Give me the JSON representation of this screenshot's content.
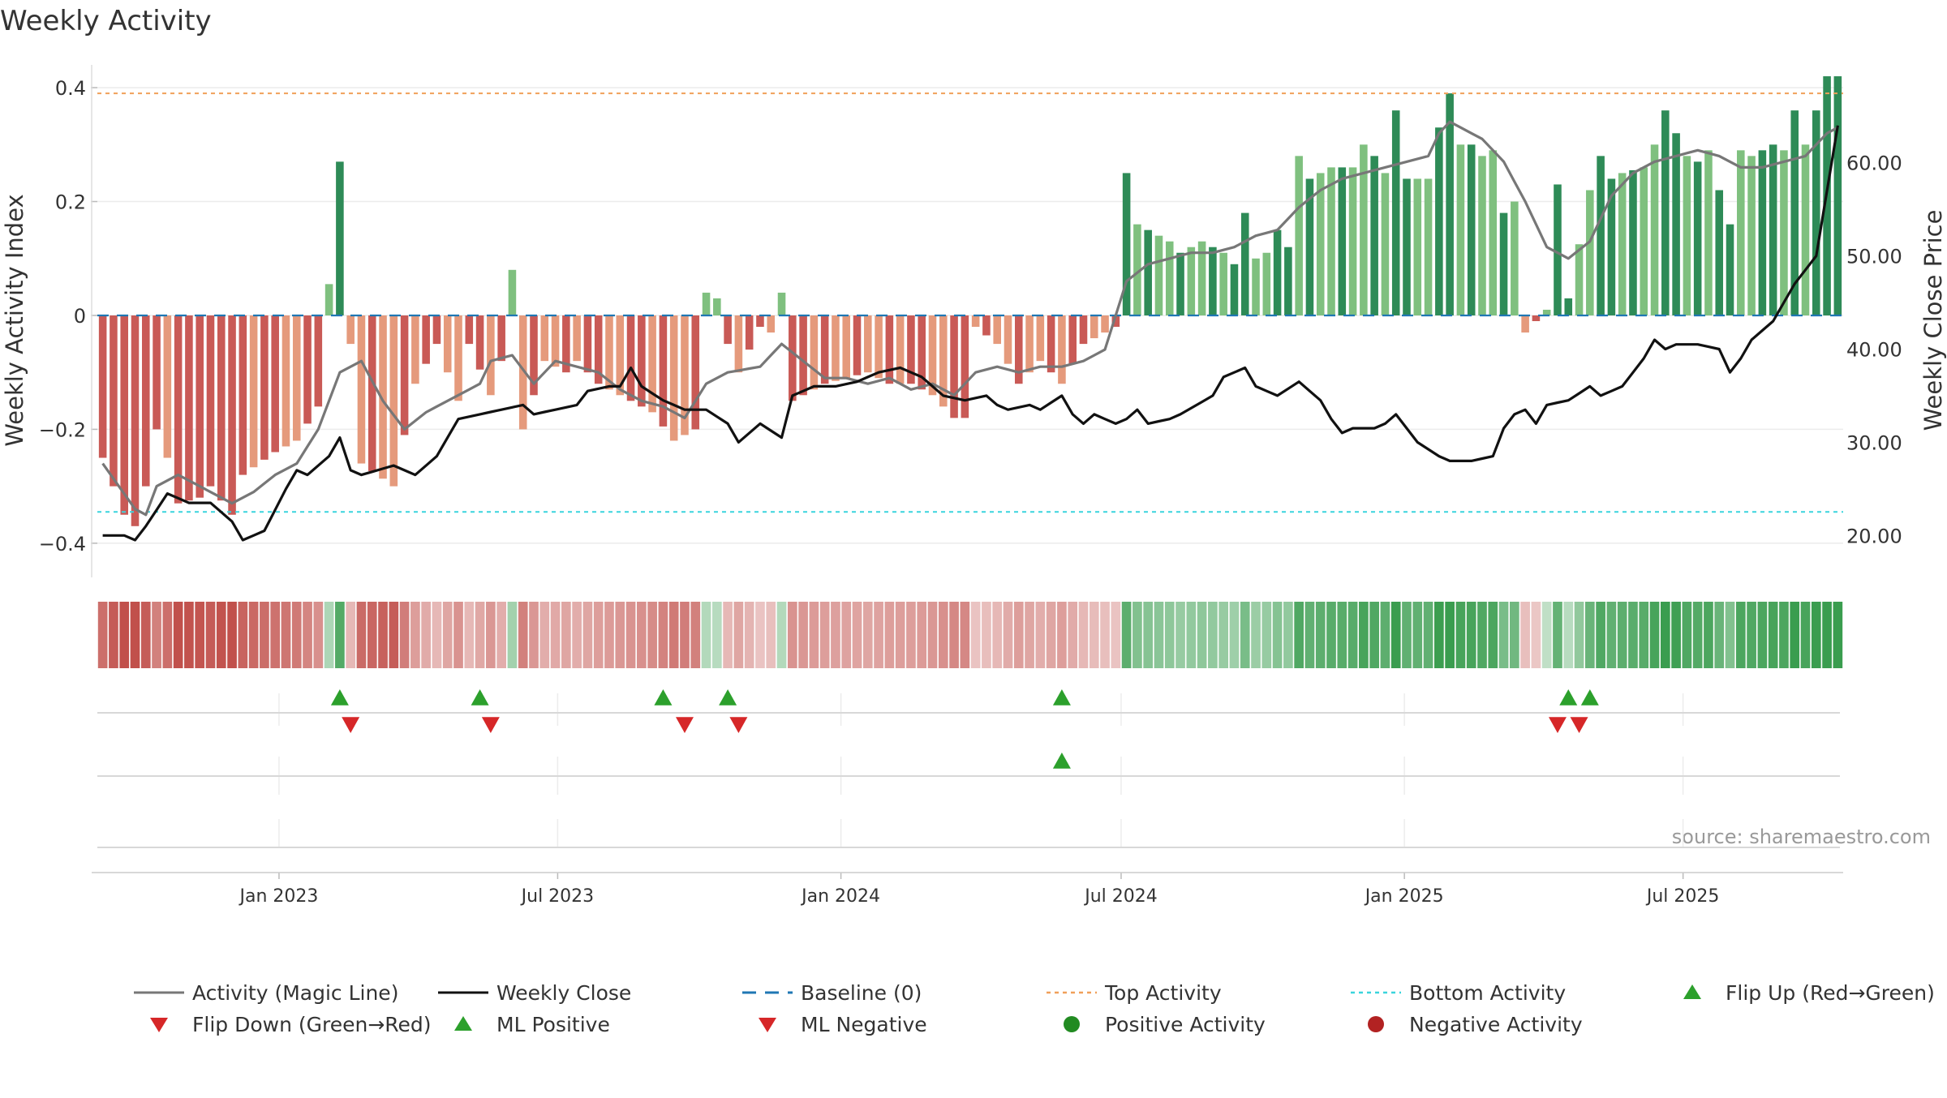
{
  "chart_data": {
    "type": "bar",
    "title": "Weekly Activity",
    "ylabel_left": "Weekly Activity Index",
    "ylabel_right": "Weekly Close Price",
    "source": "source: sharemaestro.com",
    "x_start": "2022-09-05",
    "week_count": 162,
    "x_ticks": [
      {
        "label": "Jan 2023",
        "date": "2023-01-01"
      },
      {
        "label": "Jul 2023",
        "date": "2023-07-01"
      },
      {
        "label": "Jan 2024",
        "date": "2024-01-01"
      },
      {
        "label": "Jul 2024",
        "date": "2024-07-01"
      },
      {
        "label": "Jan 2025",
        "date": "2025-01-01"
      },
      {
        "label": "Jul 2025",
        "date": "2025-07-01"
      }
    ],
    "left_axis": {
      "ylim": [
        -0.46,
        0.44
      ],
      "ticks": [
        {
          "v": 0.4,
          "label": "0.4"
        },
        {
          "v": 0.2,
          "label": "0.2"
        },
        {
          "v": 0,
          "label": "0"
        },
        {
          "v": -0.2,
          "label": "−0.2"
        },
        {
          "v": -0.4,
          "label": "−0.4"
        }
      ]
    },
    "right_axis": {
      "ylim": [
        15.5,
        70.5
      ],
      "ticks": [
        {
          "v": 60,
          "label": "60.00"
        },
        {
          "v": 50,
          "label": "50.00"
        },
        {
          "v": 40,
          "label": "40.00"
        },
        {
          "v": 30,
          "label": "30.00"
        },
        {
          "v": 20,
          "label": "20.00"
        }
      ]
    },
    "top_activity": 0.39,
    "bottom_activity": -0.345,
    "activity_keypoints": [
      [
        0,
        -0.25
      ],
      [
        2,
        -0.35
      ],
      [
        3,
        -0.37
      ],
      [
        4,
        -0.3
      ],
      [
        5,
        -0.2
      ],
      [
        6,
        -0.25
      ],
      [
        7,
        -0.33
      ],
      [
        9,
        -0.32
      ],
      [
        10,
        -0.3
      ],
      [
        12,
        -0.35
      ],
      [
        13,
        -0.28
      ],
      [
        16,
        -0.24
      ],
      [
        18,
        -0.22
      ],
      [
        20,
        -0.16
      ],
      [
        22,
        0.27
      ],
      [
        23,
        -0.05
      ],
      [
        24,
        -0.26
      ],
      [
        27,
        -0.3
      ],
      [
        29,
        -0.12
      ],
      [
        31,
        -0.05
      ],
      [
        33,
        -0.15
      ],
      [
        34,
        -0.05
      ],
      [
        36,
        -0.14
      ],
      [
        37,
        -0.08
      ],
      [
        38,
        0.08
      ],
      [
        39,
        -0.2
      ],
      [
        41,
        -0.08
      ],
      [
        43,
        -0.1
      ],
      [
        44,
        -0.08
      ],
      [
        46,
        -0.12
      ],
      [
        48,
        -0.14
      ],
      [
        51,
        -0.17
      ],
      [
        53,
        -0.22
      ],
      [
        55,
        -0.2
      ],
      [
        56,
        0.04
      ],
      [
        57,
        0.03
      ],
      [
        58,
        -0.05
      ],
      [
        59,
        -0.1
      ],
      [
        61,
        -0.02
      ],
      [
        62,
        -0.03
      ],
      [
        63,
        0.04
      ],
      [
        64,
        -0.15
      ],
      [
        67,
        -0.12
      ],
      [
        69,
        -0.11
      ],
      [
        71,
        -0.1
      ],
      [
        73,
        -0.12
      ],
      [
        75,
        -0.12
      ],
      [
        77,
        -0.14
      ],
      [
        79,
        -0.18
      ],
      [
        80,
        -0.18
      ],
      [
        81,
        -0.02
      ],
      [
        83,
        -0.05
      ],
      [
        85,
        -0.12
      ],
      [
        87,
        -0.08
      ],
      [
        89,
        -0.12
      ],
      [
        91,
        -0.05
      ],
      [
        93,
        -0.03
      ],
      [
        94,
        -0.02
      ],
      [
        95,
        0.25
      ],
      [
        96,
        0.16
      ],
      [
        97,
        0.15
      ],
      [
        98,
        0.14
      ],
      [
        99,
        0.13
      ],
      [
        100,
        0.11
      ],
      [
        101,
        0.12
      ],
      [
        102,
        0.13
      ],
      [
        104,
        0.11
      ],
      [
        105,
        0.09
      ],
      [
        106,
        0.18
      ],
      [
        107,
        0.1
      ],
      [
        108,
        0.11
      ],
      [
        109,
        0.15
      ],
      [
        110,
        0.12
      ],
      [
        111,
        0.28
      ],
      [
        112,
        0.24
      ],
      [
        113,
        0.25
      ],
      [
        114,
        0.26
      ],
      [
        116,
        0.26
      ],
      [
        117,
        0.3
      ],
      [
        118,
        0.28
      ],
      [
        119,
        0.25
      ],
      [
        120,
        0.36
      ],
      [
        121,
        0.24
      ],
      [
        123,
        0.24
      ],
      [
        124,
        0.33
      ],
      [
        125,
        0.39
      ],
      [
        126,
        0.3
      ],
      [
        127,
        0.3
      ],
      [
        128,
        0.28
      ],
      [
        129,
        0.29
      ],
      [
        130,
        0.18
      ],
      [
        131,
        0.2
      ],
      [
        132,
        -0.03
      ],
      [
        133,
        -0.01
      ],
      [
        134,
        0.01
      ],
      [
        135,
        0.23
      ],
      [
        136,
        0.03
      ],
      [
        138,
        0.22
      ],
      [
        139,
        0.28
      ],
      [
        140,
        0.24
      ],
      [
        141,
        0.25
      ],
      [
        143,
        0.26
      ],
      [
        144,
        0.3
      ],
      [
        145,
        0.36
      ],
      [
        146,
        0.32
      ],
      [
        147,
        0.28
      ],
      [
        148,
        0.27
      ],
      [
        149,
        0.29
      ],
      [
        150,
        0.22
      ],
      [
        151,
        0.16
      ],
      [
        152,
        0.29
      ],
      [
        153,
        0.28
      ],
      [
        154,
        0.29
      ],
      [
        155,
        0.3
      ],
      [
        156,
        0.29
      ],
      [
        157,
        0.36
      ],
      [
        158,
        0.3
      ],
      [
        159,
        0.36
      ],
      [
        160,
        0.42
      ],
      [
        161,
        0.42
      ]
    ],
    "close_keypoints": [
      [
        0,
        20
      ],
      [
        2,
        20
      ],
      [
        3,
        19.5
      ],
      [
        4,
        21
      ],
      [
        6,
        24.5
      ],
      [
        8,
        23.5
      ],
      [
        10,
        23.5
      ],
      [
        12,
        21.5
      ],
      [
        13,
        19.5
      ],
      [
        15,
        20.5
      ],
      [
        17,
        25
      ],
      [
        18,
        27
      ],
      [
        19,
        26.5
      ],
      [
        21,
        28.5
      ],
      [
        22,
        30.5
      ],
      [
        23,
        27
      ],
      [
        24,
        26.5
      ],
      [
        27,
        27.5
      ],
      [
        29,
        26.5
      ],
      [
        31,
        28.5
      ],
      [
        33,
        32.5
      ],
      [
        35,
        33
      ],
      [
        37,
        33.5
      ],
      [
        39,
        34
      ],
      [
        40,
        33
      ],
      [
        42,
        33.5
      ],
      [
        44,
        34
      ],
      [
        45,
        35.5
      ],
      [
        47,
        36
      ],
      [
        48,
        36
      ],
      [
        49,
        38
      ],
      [
        50,
        36
      ],
      [
        52,
        34.5
      ],
      [
        54,
        33.5
      ],
      [
        56,
        33.5
      ],
      [
        58,
        32
      ],
      [
        59,
        30
      ],
      [
        61,
        32
      ],
      [
        63,
        30.5
      ],
      [
        64,
        35
      ],
      [
        66,
        36
      ],
      [
        68,
        36
      ],
      [
        70,
        36.5
      ],
      [
        72,
        37.5
      ],
      [
        74,
        38
      ],
      [
        76,
        37
      ],
      [
        78,
        35
      ],
      [
        80,
        34.5
      ],
      [
        82,
        35
      ],
      [
        83,
        34
      ],
      [
        84,
        33.5
      ],
      [
        86,
        34
      ],
      [
        87,
        33.5
      ],
      [
        89,
        35
      ],
      [
        90,
        33
      ],
      [
        91,
        32
      ],
      [
        92,
        33
      ],
      [
        94,
        32
      ],
      [
        95,
        32.5
      ],
      [
        96,
        33.5
      ],
      [
        97,
        32
      ],
      [
        99,
        32.5
      ],
      [
        100,
        33
      ],
      [
        103,
        35
      ],
      [
        104,
        37
      ],
      [
        106,
        38
      ],
      [
        107,
        36
      ],
      [
        109,
        35
      ],
      [
        111,
        36.5
      ],
      [
        113,
        34.5
      ],
      [
        114,
        32.5
      ],
      [
        115,
        31
      ],
      [
        116,
        31.5
      ],
      [
        118,
        31.5
      ],
      [
        119,
        32
      ],
      [
        120,
        33
      ],
      [
        122,
        30
      ],
      [
        124,
        28.5
      ],
      [
        125,
        28
      ],
      [
        127,
        28
      ],
      [
        129,
        28.5
      ],
      [
        130,
        31.5
      ],
      [
        131,
        33
      ],
      [
        132,
        33.5
      ],
      [
        133,
        32
      ],
      [
        134,
        34
      ],
      [
        136,
        34.5
      ],
      [
        138,
        36
      ],
      [
        139,
        35
      ],
      [
        141,
        36
      ],
      [
        143,
        39
      ],
      [
        144,
        41
      ],
      [
        145,
        40
      ],
      [
        146,
        40.5
      ],
      [
        148,
        40.5
      ],
      [
        150,
        40
      ],
      [
        151,
        37.5
      ],
      [
        152,
        39
      ],
      [
        153,
        41
      ],
      [
        155,
        43
      ],
      [
        157,
        47
      ],
      [
        159,
        50
      ],
      [
        160,
        57
      ],
      [
        161,
        64
      ]
    ],
    "magic_keypoints": [
      [
        0,
        -0.26
      ],
      [
        3,
        -0.34
      ],
      [
        4,
        -0.35
      ],
      [
        5,
        -0.3
      ],
      [
        7,
        -0.28
      ],
      [
        10,
        -0.31
      ],
      [
        12,
        -0.33
      ],
      [
        14,
        -0.31
      ],
      [
        16,
        -0.28
      ],
      [
        18,
        -0.26
      ],
      [
        20,
        -0.2
      ],
      [
        22,
        -0.1
      ],
      [
        24,
        -0.08
      ],
      [
        26,
        -0.15
      ],
      [
        28,
        -0.2
      ],
      [
        30,
        -0.17
      ],
      [
        33,
        -0.14
      ],
      [
        35,
        -0.12
      ],
      [
        36,
        -0.08
      ],
      [
        38,
        -0.07
      ],
      [
        40,
        -0.12
      ],
      [
        42,
        -0.08
      ],
      [
        44,
        -0.09
      ],
      [
        46,
        -0.1
      ],
      [
        48,
        -0.13
      ],
      [
        50,
        -0.15
      ],
      [
        52,
        -0.16
      ],
      [
        54,
        -0.18
      ],
      [
        56,
        -0.12
      ],
      [
        58,
        -0.1
      ],
      [
        61,
        -0.09
      ],
      [
        63,
        -0.05
      ],
      [
        65,
        -0.08
      ],
      [
        67,
        -0.11
      ],
      [
        69,
        -0.11
      ],
      [
        71,
        -0.12
      ],
      [
        73,
        -0.11
      ],
      [
        75,
        -0.13
      ],
      [
        77,
        -0.12
      ],
      [
        79,
        -0.14
      ],
      [
        81,
        -0.1
      ],
      [
        83,
        -0.09
      ],
      [
        85,
        -0.1
      ],
      [
        87,
        -0.09
      ],
      [
        89,
        -0.09
      ],
      [
        91,
        -0.08
      ],
      [
        93,
        -0.06
      ],
      [
        95,
        0.06
      ],
      [
        97,
        0.09
      ],
      [
        99,
        0.1
      ],
      [
        101,
        0.11
      ],
      [
        103,
        0.11
      ],
      [
        105,
        0.12
      ],
      [
        107,
        0.14
      ],
      [
        109,
        0.15
      ],
      [
        111,
        0.19
      ],
      [
        113,
        0.22
      ],
      [
        115,
        0.24
      ],
      [
        117,
        0.25
      ],
      [
        119,
        0.26
      ],
      [
        121,
        0.27
      ],
      [
        123,
        0.28
      ],
      [
        124,
        0.32
      ],
      [
        125,
        0.34
      ],
      [
        126,
        0.33
      ],
      [
        128,
        0.31
      ],
      [
        130,
        0.27
      ],
      [
        132,
        0.2
      ],
      [
        134,
        0.12
      ],
      [
        136,
        0.1
      ],
      [
        138,
        0.13
      ],
      [
        140,
        0.21
      ],
      [
        142,
        0.25
      ],
      [
        144,
        0.27
      ],
      [
        146,
        0.28
      ],
      [
        148,
        0.29
      ],
      [
        150,
        0.28
      ],
      [
        152,
        0.26
      ],
      [
        154,
        0.26
      ],
      [
        156,
        0.27
      ],
      [
        158,
        0.28
      ],
      [
        160,
        0.32
      ],
      [
        161,
        0.33
      ]
    ],
    "flip_up_weeks": [
      22,
      35,
      52,
      58,
      89,
      136,
      138
    ],
    "flip_down_weeks": [
      23,
      36,
      54,
      59,
      135,
      137
    ],
    "ml_positive_weeks": [
      89
    ],
    "colors": {
      "bar_neg_strong": "#c95a56",
      "bar_neg_light": "#e59a7c",
      "bar_pos_strong": "#2e8b57",
      "bar_pos_light": "#7fc07f",
      "close_line": "#111111",
      "magic_line": "#777777",
      "baseline": "#1f77b4",
      "top_line": "#f0a05a",
      "bottom_line": "#3ad4dd",
      "flip_up": "#2ca02c",
      "flip_down": "#d62728"
    },
    "legend": [
      {
        "label": "Activity (Magic Line)",
        "kind": "line-gray"
      },
      {
        "label": "Weekly Close",
        "kind": "line-black"
      },
      {
        "label": "Baseline (0)",
        "kind": "dash-blue"
      },
      {
        "label": "Top Activity",
        "kind": "dot-orange"
      },
      {
        "label": "Bottom Activity",
        "kind": "dot-cyan"
      },
      {
        "label": "Flip Up (Red→Green)",
        "kind": "tri-up"
      },
      {
        "label": "Flip Down (Green→Red)",
        "kind": "tri-down"
      },
      {
        "label": "ML Positive",
        "kind": "tri-up"
      },
      {
        "label": "ML Negative",
        "kind": "tri-down"
      },
      {
        "label": "Positive Activity",
        "kind": "circle-green"
      },
      {
        "label": "Negative Activity",
        "kind": "circle-red"
      }
    ]
  }
}
